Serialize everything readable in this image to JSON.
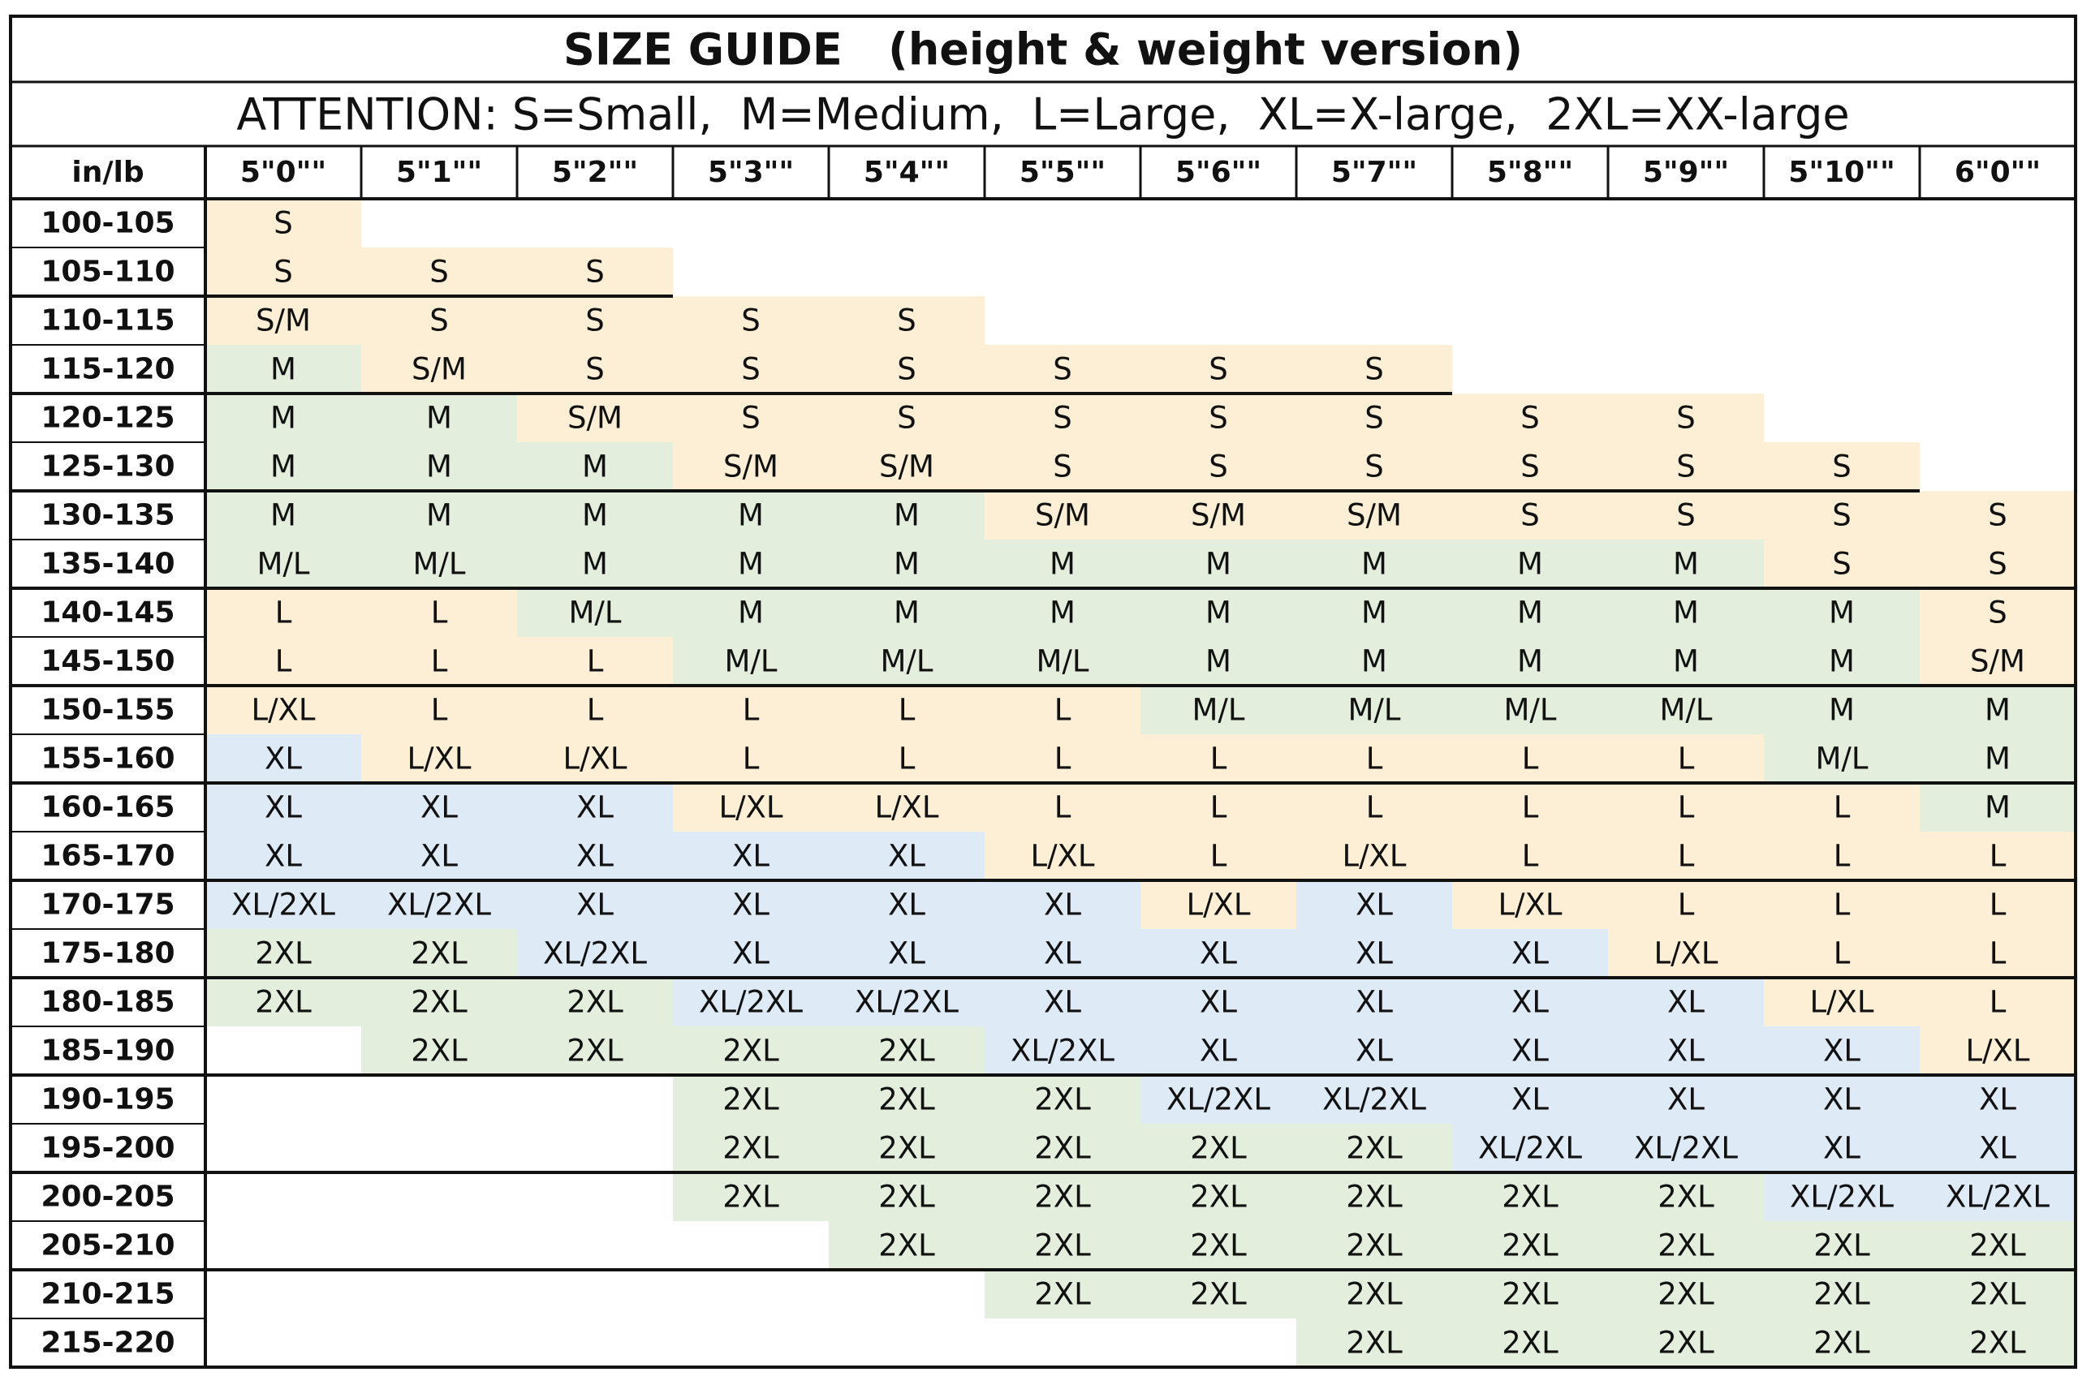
{
  "title": "SIZE GUIDE   (height & weight version)",
  "attention": "ATTENTION: S=Small,  M=Medium,  L=Large,  XL=X-large,  2XL=XX-large",
  "fills": {
    "S": "#fcefd6",
    "S/M": "#fcefd6",
    "M": "#e3efdc",
    "M/L": "#e3efdc",
    "L": "#fcefd6",
    "L/XL": "#fcefd6",
    "XL": "#deebf7",
    "XL/2XL": "#deebf7",
    "2XL": "#e3efdc"
  },
  "table": {
    "corner": "in/lb",
    "heights": [
      "5\"0\"\"",
      "5\"1\"\"",
      "5\"2\"\"",
      "5\"3\"\"",
      "5\"4\"\"",
      "5\"5\"\"",
      "5\"6\"\"",
      "5\"7\"\"",
      "5\"8\"\"",
      "5\"9\"\"",
      "5\"10\"\"",
      "6\"0\"\""
    ],
    "rows": [
      {
        "weight": "100-105",
        "cells": [
          "S",
          null,
          null,
          null,
          null,
          null,
          null,
          null,
          null,
          null,
          null,
          null
        ]
      },
      {
        "weight": "105-110",
        "cells": [
          "S",
          "S",
          "S",
          null,
          null,
          null,
          null,
          null,
          null,
          null,
          null,
          null
        ]
      },
      {
        "weight": "110-115",
        "cells": [
          "S/M",
          "S",
          "S",
          "S",
          "S",
          null,
          null,
          null,
          null,
          null,
          null,
          null
        ]
      },
      {
        "weight": "115-120",
        "cells": [
          "M",
          "S/M",
          "S",
          "S",
          "S",
          "S",
          "S",
          "S",
          null,
          null,
          null,
          null
        ]
      },
      {
        "weight": "120-125",
        "cells": [
          "M",
          "M",
          "S/M",
          "S",
          "S",
          "S",
          "S",
          "S",
          "S",
          "S",
          null,
          null
        ]
      },
      {
        "weight": "125-130",
        "cells": [
          "M",
          "M",
          "M",
          "S/M",
          "S/M",
          "S",
          "S",
          "S",
          "S",
          "S",
          "S",
          null
        ]
      },
      {
        "weight": "130-135",
        "cells": [
          "M",
          "M",
          "M",
          "M",
          "M",
          "S/M",
          "S/M",
          "S/M",
          "S",
          "S",
          "S",
          "S"
        ]
      },
      {
        "weight": "135-140",
        "cells": [
          "M/L",
          "M/L",
          "M",
          "M",
          "M",
          "M",
          "M",
          "M",
          "M",
          "M",
          "S",
          "S"
        ]
      },
      {
        "weight": "140-145",
        "cells": [
          "L",
          "L",
          "M/L",
          "M",
          "M",
          "M",
          "M",
          "M",
          "M",
          "M",
          "M",
          "S"
        ]
      },
      {
        "weight": "145-150",
        "cells": [
          "L",
          "L",
          "L",
          "M/L",
          "M/L",
          "M/L",
          "M",
          "M",
          "M",
          "M",
          "M",
          "S/M"
        ]
      },
      {
        "weight": "150-155",
        "cells": [
          "L/XL",
          "L",
          "L",
          "L",
          "L",
          "L",
          "M/L",
          "M/L",
          "M/L",
          "M/L",
          "M",
          "M"
        ]
      },
      {
        "weight": "155-160",
        "cells": [
          "XL",
          "L/XL",
          "L/XL",
          "L",
          "L",
          "L",
          "L",
          "L",
          "L",
          "L",
          "M/L",
          "M"
        ]
      },
      {
        "weight": "160-165",
        "cells": [
          "XL",
          "XL",
          "XL",
          "L/XL",
          "L/XL",
          "L",
          "L",
          "L",
          "L",
          "L",
          "L",
          "M"
        ]
      },
      {
        "weight": "165-170",
        "cells": [
          "XL",
          "XL",
          "XL",
          "XL",
          "XL",
          "L/XL",
          "L",
          "L/XL",
          "L",
          "L",
          "L",
          "L"
        ]
      },
      {
        "weight": "170-175",
        "cells": [
          "XL/2XL",
          "XL/2XL",
          "XL",
          "XL",
          "XL",
          "XL",
          "L/XL",
          "XL",
          "L/XL",
          "L",
          "L",
          "L"
        ]
      },
      {
        "weight": "175-180",
        "cells": [
          "2XL",
          "2XL",
          "XL/2XL",
          "XL",
          "XL",
          "XL",
          "XL",
          "XL",
          "XL",
          "L/XL",
          "L",
          "L"
        ]
      },
      {
        "weight": "180-185",
        "cells": [
          "2XL",
          "2XL",
          "2XL",
          "XL/2XL",
          "XL/2XL",
          "XL",
          "XL",
          "XL",
          "XL",
          "XL",
          "L/XL",
          "L"
        ]
      },
      {
        "weight": "185-190",
        "cells": [
          null,
          "2XL",
          "2XL",
          "2XL",
          "2XL",
          "XL/2XL",
          "XL",
          "XL",
          "XL",
          "XL",
          "XL",
          "L/XL"
        ]
      },
      {
        "weight": "190-195",
        "cells": [
          null,
          null,
          null,
          "2XL",
          "2XL",
          "2XL",
          "XL/2XL",
          "XL/2XL",
          "XL",
          "XL",
          "XL",
          "XL"
        ]
      },
      {
        "weight": "195-200",
        "cells": [
          null,
          null,
          null,
          "2XL",
          "2XL",
          "2XL",
          "2XL",
          "2XL",
          "XL/2XL",
          "XL/2XL",
          "XL",
          "XL"
        ]
      },
      {
        "weight": "200-205",
        "cells": [
          null,
          null,
          null,
          "2XL",
          "2XL",
          "2XL",
          "2XL",
          "2XL",
          "2XL",
          "2XL",
          "XL/2XL",
          "XL/2XL"
        ]
      },
      {
        "weight": "205-210",
        "cells": [
          null,
          null,
          null,
          null,
          "2XL",
          "2XL",
          "2XL",
          "2XL",
          "2XL",
          "2XL",
          "2XL",
          "2XL"
        ]
      },
      {
        "weight": "210-215",
        "cells": [
          null,
          null,
          null,
          null,
          null,
          "2XL",
          "2XL",
          "2XL",
          "2XL",
          "2XL",
          "2XL",
          "2XL"
        ]
      },
      {
        "weight": "215-220",
        "cells": [
          null,
          null,
          null,
          null,
          null,
          null,
          null,
          "2XL",
          "2XL",
          "2XL",
          "2XL",
          "2XL"
        ]
      }
    ]
  }
}
